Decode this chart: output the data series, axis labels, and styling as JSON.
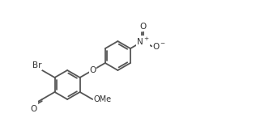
{
  "bg_color": "#ffffff",
  "bond_color": "#555555",
  "bond_lw": 1.3,
  "font_size": 7.5,
  "font_color": "#333333",
  "figsize": [
    3.37,
    1.56
  ],
  "dpi": 100,
  "xlim": [
    -2.0,
    11.5
  ],
  "ylim": [
    -2.8,
    5.8
  ]
}
